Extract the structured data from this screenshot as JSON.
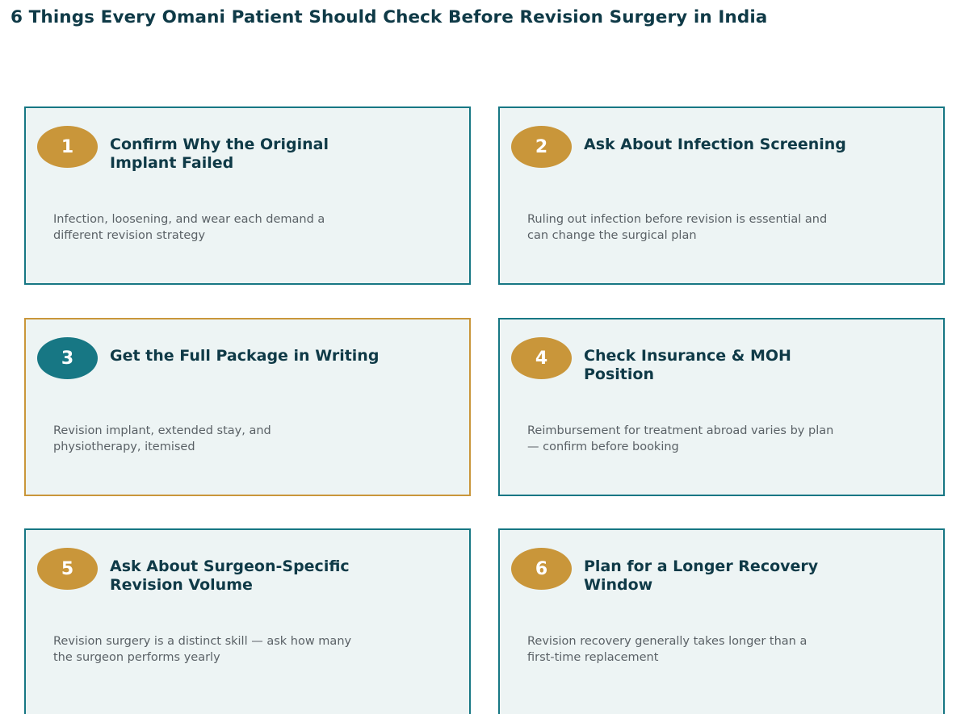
{
  "title": "6 Things Every Omani Patient Should Check Before Revision Surgery in India",
  "colors": {
    "teal": "#177784",
    "gold": "#c9963a",
    "navy": "#0f3a47",
    "card_bg": "#edf4f4",
    "body_text": "#5a6166"
  },
  "cards": [
    {
      "number": "1",
      "title": "Confirm Why the Original Implant Failed",
      "body": "Infection, loosening, and wear each demand a different revision strategy"
    },
    {
      "number": "2",
      "title": "Ask About Infection Screening",
      "body": "Ruling out infection before revision is essential and can change the surgical plan"
    },
    {
      "number": "3",
      "title": "Get the Full Package in Writing",
      "body": "Revision implant, extended stay, and physiotherapy, itemised"
    },
    {
      "number": "4",
      "title": "Check Insurance & MOH Position",
      "body": "Reimbursement for treatment abroad varies by plan — confirm before booking"
    },
    {
      "number": "5",
      "title": "Ask About Surgeon-Specific Revision Volume",
      "body": "Revision surgery is a distinct skill — ask how many the surgeon performs yearly"
    },
    {
      "number": "6",
      "title": "Plan for a Longer Recovery Window",
      "body": "Revision recovery generally takes longer than a first-time replacement"
    }
  ]
}
